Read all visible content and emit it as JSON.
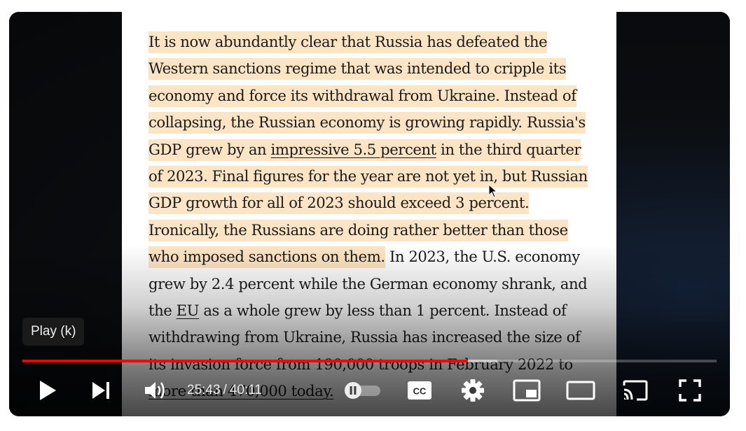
{
  "article": {
    "lines": [
      {
        "hl": "It is now abundantly clear that Russia has defeated the"
      },
      {
        "hl": "Western sanctions regime that was intended to cripple its"
      },
      {
        "hl": "economy and force its withdrawal from Ukraine. Instead of"
      },
      {
        "hl": "collapsing, the Russian economy is growing rapidly. Russia's"
      },
      {
        "hl_a": "GDP grew by an ",
        "link": "impressive 5.5 percent",
        "hl_b": " in the third quarter"
      },
      {
        "hl": "of 2023. Final figures for the year are not yet in, but Russian"
      },
      {
        "hl": "GDP growth for all of 2023 should exceed 3 percent."
      },
      {
        "hl": "Ironically, the Russians are doing rather better than those"
      },
      {
        "hl": "who imposed sanctions on them.",
        "plain": " In 2023, the U.S. economy"
      },
      {
        "plain": "grew by 2.4 percent while the German economy shrank, and"
      },
      {
        "plain_a": "the ",
        "link": "EU",
        "plain_b": " as a whole grew by less than 1 percent. Instead of"
      },
      {
        "plain": "withdrawing from Ukraine, Russia has increased the size of"
      },
      {
        "plain": "its invasion force from 190,000 troops in February 2022 to"
      },
      {
        "plain": "more than 470,000 today."
      }
    ]
  },
  "tooltip": {
    "text": "Play (k)"
  },
  "player": {
    "progress_fraction": 0.642,
    "loaded_fraction": 0.684,
    "current_time": "25:43",
    "separator": "/",
    "duration": "40:11",
    "colors": {
      "progress": "#ff0000",
      "controls": "#ffffff",
      "highlight": "#fde4c4"
    },
    "icons": [
      "play-icon",
      "next-icon",
      "volume-icon",
      "autoplay-toggle-icon",
      "subtitles-icon",
      "settings-icon",
      "miniplayer-icon",
      "theater-mode-icon",
      "cast-icon",
      "fullscreen-icon"
    ]
  }
}
